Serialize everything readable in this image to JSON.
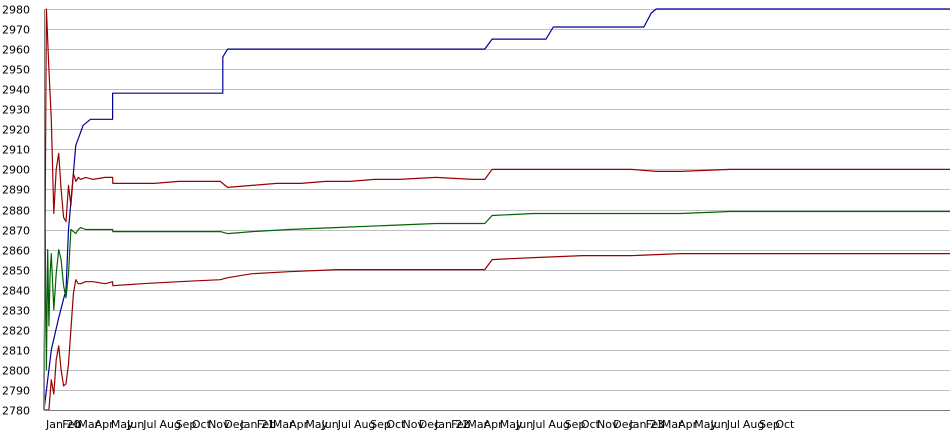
{
  "chart_data": {
    "type": "line",
    "title": "",
    "xlabel": "",
    "ylabel": "",
    "ylim": [
      2780,
      2980
    ],
    "yticks": [
      2780,
      2790,
      2800,
      2810,
      2820,
      2830,
      2840,
      2850,
      2860,
      2870,
      2880,
      2890,
      2900,
      2910,
      2920,
      2930,
      2940,
      2950,
      2960,
      2970,
      2980
    ],
    "xlim": [
      0,
      37
    ],
    "xticks": [
      "Jan 20",
      "Feb",
      "Mar",
      "Apr",
      "May",
      "Jun",
      "Jul",
      "Aug",
      "Sep",
      "Oct",
      "Nov",
      "Dec",
      "Jan 21",
      "Feb",
      "Mar",
      "Apr",
      "May",
      "Jun",
      "Jul",
      "Aug",
      "Sep",
      "Oct",
      "Nov",
      "Dec",
      "Jan 22",
      "Feb",
      "Mar",
      "Apr",
      "May",
      "Jun",
      "Jul",
      "Aug",
      "Sep",
      "Oct",
      "Nov",
      "Dec",
      "Jan 23",
      "Feb",
      "Mar",
      "Apr",
      "May",
      "Jun",
      "Jul",
      "Aug",
      "Sep",
      "Oct"
    ],
    "grid": true,
    "legend": "none",
    "colors": {
      "max": "#000099",
      "upper": "#990000",
      "average": "#006600",
      "lower": "#990000",
      "grid": "#c0c0c0"
    },
    "series": [
      {
        "key": "max",
        "x": [
          0,
          0.3,
          0.6,
          0.9,
          1.0,
          1.3,
          1.6,
          1.9,
          2.2,
          2.8,
          2.8,
          7.3,
          7.3,
          7.5,
          18.0,
          18.3,
          20.5,
          20.8,
          24.5,
          24.8,
          25.0,
          37
        ],
        "y": [
          2780,
          2810,
          2826,
          2840,
          2870,
          2912,
          2922,
          2925,
          2925,
          2925,
          2938,
          2938,
          2956,
          2960,
          2960,
          2965,
          2965,
          2971,
          2971,
          2978,
          2980,
          2980
        ]
      },
      {
        "key": "upper",
        "x": [
          0,
          0.1,
          0.2,
          0.3,
          0.4,
          0.5,
          0.6,
          0.7,
          0.8,
          0.9,
          1.0,
          1.1,
          1.2,
          1.3,
          1.4,
          1.5,
          1.7,
          2.0,
          2.5,
          2.8,
          2.81,
          3.5,
          4.5,
          5.5,
          6.5,
          7.2,
          7.5,
          8.5,
          9.5,
          10.5,
          11.5,
          12.5,
          13.5,
          14.5,
          16.0,
          17.5,
          18.0,
          18.3,
          19.0,
          20.0,
          21.0,
          22.0,
          23.0,
          24.0,
          25.0,
          26.0,
          28.0,
          30.0,
          32.0,
          34.0,
          35.5,
          37
        ],
        "y": [
          2780,
          2980,
          2950,
          2925,
          2878,
          2900,
          2908,
          2890,
          2876,
          2874,
          2892,
          2882,
          2898,
          2894,
          2896,
          2895,
          2896,
          2895,
          2896,
          2896,
          2893,
          2893,
          2893,
          2894,
          2894,
          2894,
          2891,
          2892,
          2893,
          2893,
          2894,
          2894,
          2895,
          2895,
          2896,
          2895,
          2895,
          2900,
          2900,
          2900,
          2900,
          2900,
          2900,
          2900,
          2899,
          2899,
          2900,
          2900,
          2900,
          2900,
          2900,
          2900
        ]
      },
      {
        "key": "average",
        "x": [
          0,
          0.05,
          0.1,
          0.15,
          0.2,
          0.25,
          0.3,
          0.4,
          0.5,
          0.6,
          0.7,
          0.8,
          0.9,
          1.0,
          1.1,
          1.2,
          1.3,
          1.4,
          1.5,
          1.7,
          2.0,
          2.5,
          2.8,
          2.81,
          4.0,
          5.5,
          7.2,
          7.5,
          8.5,
          10.0,
          12.0,
          14.0,
          16.0,
          17.5,
          18.0,
          18.3,
          20.0,
          22.0,
          24.0,
          26.0,
          28.0,
          30.0,
          32.0,
          34.0,
          37
        ],
        "y": [
          2780,
          2870,
          2800,
          2860,
          2822,
          2848,
          2858,
          2830,
          2848,
          2860,
          2855,
          2842,
          2836,
          2848,
          2870,
          2869,
          2868,
          2870,
          2871,
          2870,
          2870,
          2870,
          2870,
          2869,
          2869,
          2869,
          2869,
          2868,
          2869,
          2870,
          2871,
          2872,
          2873,
          2873,
          2873,
          2877,
          2878,
          2878,
          2878,
          2878,
          2879,
          2879,
          2879,
          2879,
          2879
        ]
      },
      {
        "key": "lower",
        "x": [
          0,
          0.2,
          0.3,
          0.4,
          0.5,
          0.6,
          0.7,
          0.8,
          0.9,
          1.0,
          1.1,
          1.2,
          1.3,
          1.4,
          1.5,
          1.7,
          2.0,
          2.5,
          2.8,
          2.81,
          4.0,
          5.5,
          7.2,
          7.5,
          8.5,
          10.0,
          12.0,
          14.0,
          16.0,
          17.5,
          18.0,
          18.3,
          20.0,
          22.0,
          24.0,
          26.0,
          28.0,
          30.0,
          32.0,
          34.0,
          37
        ],
        "y": [
          2780,
          2780,
          2795,
          2788,
          2805,
          2812,
          2800,
          2792,
          2793,
          2803,
          2820,
          2838,
          2845,
          2843,
          2843,
          2844,
          2844,
          2843,
          2844,
          2842,
          2843,
          2844,
          2845,
          2846,
          2848,
          2849,
          2850,
          2850,
          2850,
          2850,
          2850,
          2855,
          2856,
          2857,
          2857,
          2858,
          2858,
          2858,
          2858,
          2858,
          2858
        ]
      }
    ]
  }
}
